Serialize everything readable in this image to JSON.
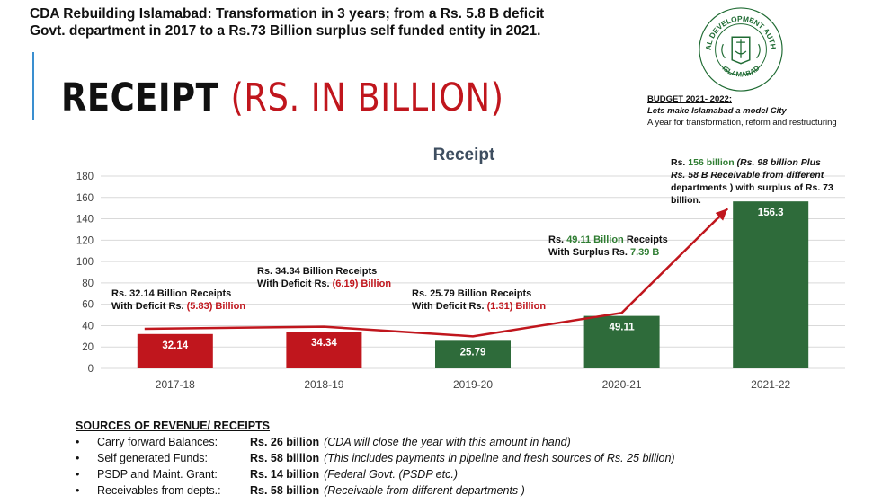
{
  "header": {
    "headline_line1": "CDA Rebuilding Islamabad: Transformation in 3 years; from a Rs. 5.8 B deficit",
    "headline_line2": "Govt. department in 2017 to a Rs.73 Billion surplus self funded entity in 2021.",
    "title_main": "RECEIPT",
    "title_sub": "(RS. IN BILLION)"
  },
  "seal": {
    "outer_text": "CAPITAL DEVELOPMENT AUTHORITY",
    "bottom_text": "ISLAMABAD"
  },
  "budget_note": {
    "heading": "BUDGET 2021- 2022:",
    "line1": "Lets make Islamabad a model City",
    "line2": "A year for transformation, reform and restructuring"
  },
  "colors": {
    "red": "#c0161d",
    "green": "#2e6b3a",
    "grid": "#d9d9d9",
    "line": "#c0161d",
    "accent_green": "#2f7d32"
  },
  "chart_data": {
    "type": "bar",
    "title": "Receipt",
    "categories": [
      "2017-18",
      "2018-19",
      "2019-20",
      "2020-21",
      "2021-22"
    ],
    "values": [
      32.14,
      34.34,
      25.79,
      49.11,
      156.3
    ],
    "value_labels": [
      "32.14",
      "34.34",
      "25.79",
      "49.11",
      "156.3"
    ],
    "bar_colors": [
      "red",
      "red",
      "green",
      "green",
      "green"
    ],
    "trend_line": [
      37,
      39,
      30,
      52,
      156.3
    ],
    "ylim": [
      0,
      180
    ],
    "yticks": [
      0,
      20,
      40,
      60,
      80,
      100,
      120,
      140,
      160,
      180
    ],
    "grid": true,
    "annotations": [
      {
        "line1": "Rs. 32.14 Billion Receipts",
        "line2_prefix": "With Deficit Rs. ",
        "line2_value": "(5.83) Billion",
        "value_color": "red"
      },
      {
        "line1": "Rs. 34.34 Billion Receipts",
        "line2_prefix": "With Deficit Rs. ",
        "line2_value": "(6.19) Billion",
        "value_color": "red"
      },
      {
        "line1": "Rs. 25.79 Billion Receipts",
        "line2_prefix": "With Deficit Rs. ",
        "line2_value": "(1.31) Billion",
        "value_color": "red"
      },
      {
        "line1_prefix": "Rs. ",
        "line1_value": "49.11 Billion",
        "line1_suffix": " Receipts",
        "line2_prefix": "With Surplus Rs. ",
        "line2_value": "7.39 B",
        "value_color": "green"
      },
      {
        "line1_prefix": "Rs. ",
        "line1_value": "156 billion",
        "line1_rest": " (Rs. 98 billion Plus",
        "line2": "Rs. 58 B Receivable from different",
        "line3": "departments ) with surplus of Rs. 73",
        "line4": "billion."
      }
    ]
  },
  "sources": {
    "heading": "SOURCES OF REVENUE/ RECEIPTS",
    "bullet": "•",
    "items": [
      {
        "label": "Carry forward Balances:",
        "amount": "Rs. 26 billion",
        "note": "(CDA will close the year with this amount in hand)"
      },
      {
        "label": "Self generated Funds:",
        "amount": "Rs. 58 billion",
        "note": "(This includes payments in pipeline and fresh sources of Rs. 25 billion)"
      },
      {
        "label": "PSDP and Maint. Grant:",
        "amount": "Rs. 14 billion",
        "note": "(Federal Govt. (PSDP etc.)"
      },
      {
        "label": "Receivables from depts.:",
        "amount": "Rs. 58 billion",
        "note": "(Receivable from different departments )"
      }
    ]
  }
}
